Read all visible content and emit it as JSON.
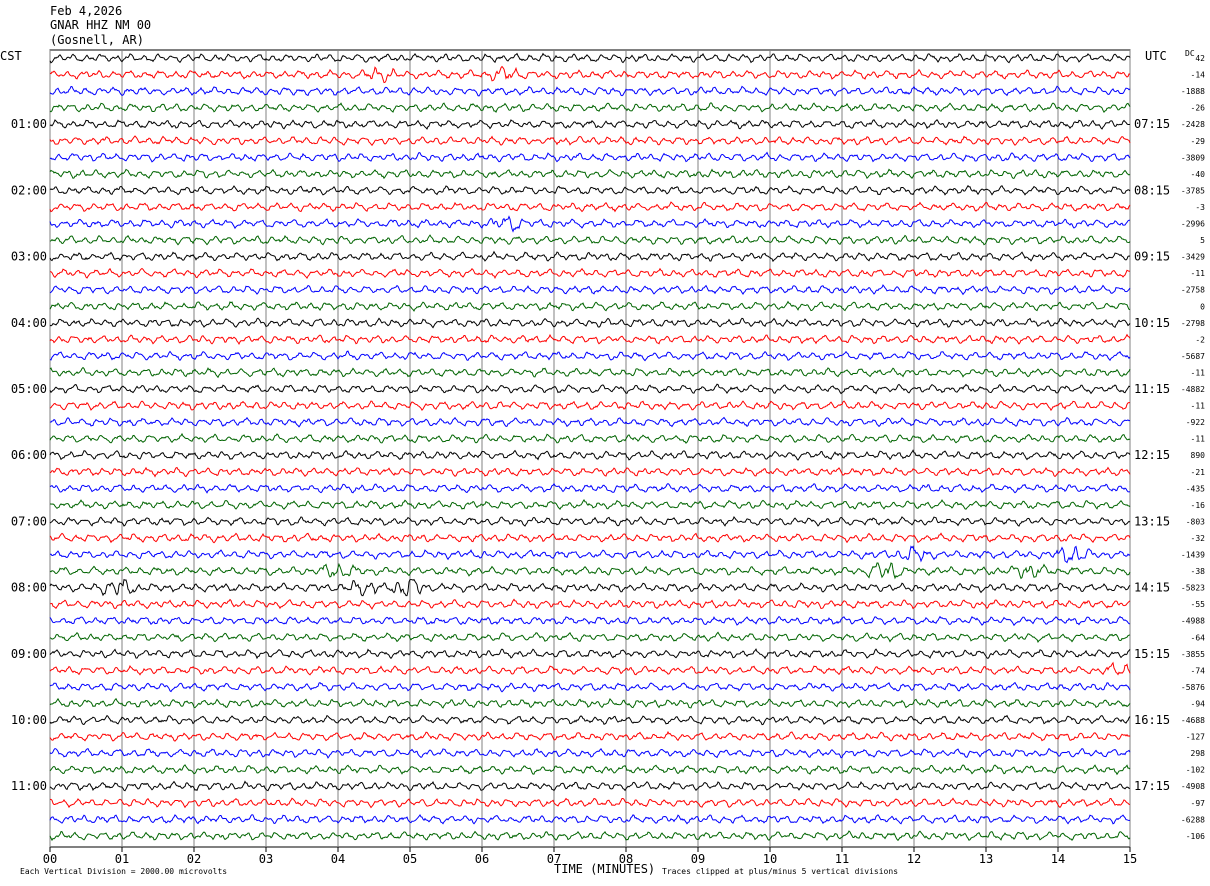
{
  "header": {
    "date": "Feb 4,2026",
    "station": "GNAR HHZ NM 00",
    "location": "(Gosnell, AR)"
  },
  "left_axis_label": "CST",
  "right_axis_label": "UTC",
  "dc_label": "DC",
  "footer": {
    "scale_note": "Each Vertical Division = 2000.00 microvolts",
    "clip_note": "Traces clipped at plus/minus 5 vertical divisions",
    "x_title": "TIME (MINUTES)"
  },
  "chart_data": {
    "type": "line",
    "title": "",
    "xlabel": "TIME (MINUTES)",
    "ylabel": "",
    "xlim": [
      0,
      15
    ],
    "x_ticks": [
      "00",
      "01",
      "02",
      "03",
      "04",
      "05",
      "06",
      "07",
      "08",
      "09",
      "10",
      "11",
      "12",
      "13",
      "14",
      "15"
    ],
    "grid": true,
    "line_colors": [
      "#000000",
      "#ff0000",
      "#0000ff",
      "#006400"
    ],
    "cst_hour_labels": [
      "01:00",
      "02:00",
      "03:00",
      "04:00",
      "05:00",
      "06:00",
      "07:00",
      "08:00",
      "09:00",
      "10:00",
      "11:00"
    ],
    "utc_hour_labels": [
      "07:15",
      "08:15",
      "09:15",
      "10:15",
      "11:15",
      "12:15",
      "13:15",
      "14:15",
      "15:15",
      "16:15",
      "17:15"
    ],
    "trace_count": 48,
    "dc_offsets": [
      "42",
      "-14",
      "-1888",
      "-26",
      "-2428",
      "-29",
      "-3809",
      "-40",
      "-3785",
      "-3",
      "-2996",
      "5",
      "-3429",
      "-11",
      "-2758",
      "0",
      "-2798",
      "-2",
      "-5687",
      "-11",
      "-4882",
      "-11",
      "-922",
      "-11",
      "890",
      "-21",
      "-435",
      "-16",
      "-803",
      "-32",
      "-1439",
      "-38",
      "-5823",
      "-55",
      "-4988",
      "-64",
      "-3855",
      "-74",
      "-5876",
      "-94",
      "-4688",
      "-127",
      "298",
      "-102",
      "-4908",
      "-97",
      "-6288",
      "-106"
    ],
    "events": [
      {
        "trace": 1,
        "minute": 4.6,
        "amp": 1.6
      },
      {
        "trace": 1,
        "minute": 6.3,
        "amp": 1.6
      },
      {
        "trace": 10,
        "minute": 6.35,
        "amp": 1.5
      },
      {
        "trace": 30,
        "minute": 12.0,
        "amp": 1.5
      },
      {
        "trace": 30,
        "minute": 14.2,
        "amp": 2.2
      },
      {
        "trace": 31,
        "minute": 4.0,
        "amp": 1.5
      },
      {
        "trace": 31,
        "minute": 11.6,
        "amp": 2.4
      },
      {
        "trace": 31,
        "minute": 13.6,
        "amp": 1.6
      },
      {
        "trace": 32,
        "minute": 0.95,
        "amp": 2.2
      },
      {
        "trace": 32,
        "minute": 4.35,
        "amp": 1.8
      },
      {
        "trace": 32,
        "minute": 5.0,
        "amp": 2.8
      },
      {
        "trace": 37,
        "minute": 14.9,
        "amp": 1.6
      }
    ]
  }
}
